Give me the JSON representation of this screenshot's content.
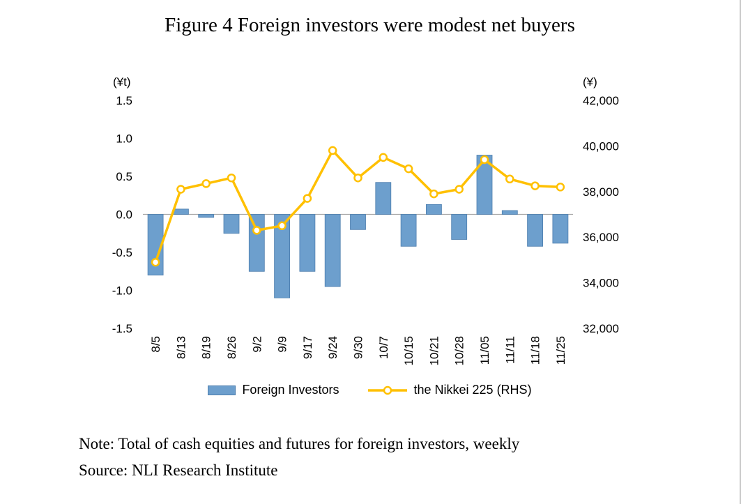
{
  "title": "Figure 4 Foreign investors were modest net buyers",
  "note": "Note: Total of cash equities and futures for foreign investors, weekly",
  "source": "Source: NLI Research Institute",
  "colors": {
    "bar_fill": "#6D9FCD",
    "bar_stroke": "#4D7EAE",
    "line": "#FFC000",
    "marker_fill": "#FFFFFF",
    "zero_line": "#A6A6A6",
    "text": "#000000"
  },
  "chart_data": {
    "type": "bar+line",
    "categories": [
      "8/5",
      "8/13",
      "8/19",
      "8/26",
      "9/2",
      "9/9",
      "9/17",
      "9/24",
      "9/30",
      "10/7",
      "10/15",
      "10/21",
      "10/28",
      "11/05",
      "11/11",
      "11/18",
      "11/25"
    ],
    "series": [
      {
        "name": "Foreign Investors",
        "type": "bar",
        "axis": "left",
        "values": [
          -0.8,
          0.07,
          -0.04,
          -0.25,
          -0.75,
          -1.1,
          -0.75,
          -0.95,
          -0.2,
          0.42,
          -0.42,
          0.13,
          -0.33,
          0.78,
          0.05,
          -0.42,
          -0.38
        ]
      },
      {
        "name": "the Nikkei 225 (RHS)",
        "type": "line",
        "axis": "right",
        "values": [
          34900,
          38100,
          38350,
          38600,
          36300,
          36500,
          37700,
          39800,
          38600,
          39500,
          39000,
          37900,
          38100,
          39400,
          38550,
          38250,
          38200
        ]
      }
    ],
    "left_axis": {
      "unit": "(¥t)",
      "min": -1.5,
      "max": 1.5,
      "ticks": [
        1.5,
        1.0,
        0.5,
        0.0,
        -0.5,
        -1.0,
        -1.5
      ],
      "tick_labels": [
        "1.5",
        "1.0",
        "0.5",
        "0.0",
        "-0.5",
        "-1.0",
        "-1.5"
      ]
    },
    "right_axis": {
      "unit": "(¥)",
      "min": 32000,
      "max": 42000,
      "ticks": [
        42000,
        40000,
        38000,
        36000,
        34000,
        32000
      ],
      "tick_labels": [
        "42,000",
        "40,000",
        "38,000",
        "36,000",
        "34,000",
        "32,000"
      ]
    },
    "grid": false,
    "legend_position": "bottom"
  }
}
